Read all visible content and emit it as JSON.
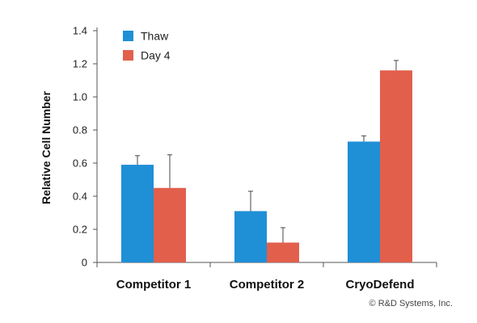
{
  "chart_data": {
    "type": "bar",
    "categories": [
      "Competitor 1",
      "Competitor 2",
      "CryoDefend"
    ],
    "series": [
      {
        "name": "Thaw",
        "color": "#1f8fd6",
        "values": [
          0.59,
          0.31,
          0.73
        ],
        "errors": [
          0.055,
          0.12,
          0.035
        ]
      },
      {
        "name": "Day 4",
        "color": "#e25f4c",
        "values": [
          0.45,
          0.12,
          1.16
        ],
        "errors": [
          0.2,
          0.09,
          0.06
        ]
      }
    ],
    "ylabel": "Relative Cell Number",
    "xlabel": "",
    "ylim": [
      0,
      1.4
    ],
    "yticks": [
      "0",
      "0.2",
      "0.4",
      "0.6",
      "0.8",
      "1.0",
      "1.2",
      "1.4"
    ],
    "legend": "top-left",
    "grid": false
  },
  "footer": {
    "copyright": "© R&D Systems, Inc."
  }
}
